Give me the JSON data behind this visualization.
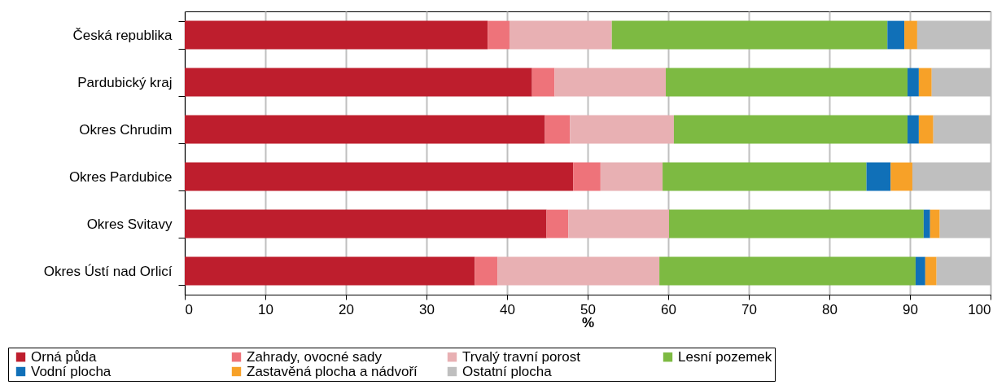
{
  "chart_data": {
    "type": "bar",
    "orientation": "horizontal",
    "stacked": true,
    "xlabel": "%",
    "xlim": [
      0,
      100
    ],
    "xticks": [
      0,
      10,
      20,
      30,
      40,
      50,
      60,
      70,
      80,
      90,
      100
    ],
    "grid": "x",
    "legend": "bottom",
    "categories": [
      "Česká republika",
      "Pardubický kraj",
      "Okres Chrudim",
      "Okres Pardubice",
      "Okres Svitavy",
      "Okres Ústí nad Orlicí"
    ],
    "series": [
      {
        "name": "Orná půda",
        "color": "#be1e2d",
        "values": [
          37.6,
          43.1,
          44.7,
          48.2,
          44.9,
          36.0
        ]
      },
      {
        "name": "Zahrady, ovocné sady",
        "color": "#ee737a",
        "values": [
          2.7,
          2.8,
          3.1,
          3.4,
          2.7,
          2.8
        ]
      },
      {
        "name": "Trvalý travní porost",
        "color": "#e8b0b3",
        "values": [
          12.7,
          13.8,
          12.9,
          7.7,
          12.5,
          20.1
        ]
      },
      {
        "name": "Lesní pozemek",
        "color": "#7dba42",
        "values": [
          34.2,
          30.0,
          29.0,
          25.3,
          31.6,
          31.8
        ]
      },
      {
        "name": "Vodní plocha",
        "color": "#1070b8",
        "values": [
          2.1,
          1.4,
          1.4,
          3.0,
          0.8,
          1.2
        ]
      },
      {
        "name": "Zastavěná plocha a nádvoří",
        "color": "#f7a128",
        "values": [
          1.6,
          1.6,
          1.8,
          2.7,
          1.2,
          1.4
        ]
      },
      {
        "name": "Ostatní plocha",
        "color": "#bfbfbf",
        "values": [
          9.1,
          7.3,
          7.1,
          9.7,
          6.3,
          6.7
        ]
      }
    ]
  }
}
